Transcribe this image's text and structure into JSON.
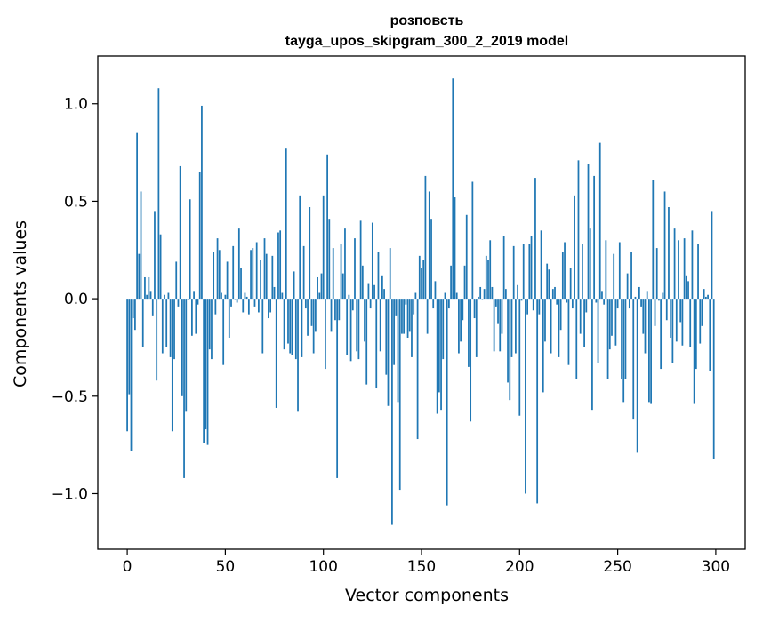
{
  "chart_data": {
    "type": "bar",
    "title": "розповсть",
    "subtitle": "tayga_upos_skipgram_300_2_2019 model",
    "xlabel": "Vector components",
    "ylabel": "Components values",
    "xlim": [
      -15,
      315
    ],
    "ylim": [
      -1.285,
      1.245
    ],
    "x_ticks": [
      0,
      50,
      100,
      150,
      200,
      250,
      300
    ],
    "x_tick_labels": [
      "0",
      "50",
      "100",
      "150",
      "200",
      "250",
      "300"
    ],
    "y_ticks": [
      -1.0,
      -0.5,
      0.0,
      0.5,
      1.0
    ],
    "y_tick_labels": [
      "−1.0",
      "−0.5",
      "0.0",
      "0.5",
      "1.0"
    ],
    "grid": false,
    "legend": "none",
    "bar_color": "#1f77b4",
    "values": [
      -0.68,
      -0.49,
      -0.78,
      -0.1,
      -0.16,
      0.85,
      0.23,
      0.55,
      -0.25,
      0.11,
      0.02,
      0.11,
      0.04,
      -0.09,
      0.45,
      -0.42,
      1.08,
      0.33,
      -0.28,
      0.02,
      -0.25,
      0.03,
      -0.3,
      -0.68,
      -0.31,
      0.19,
      -0.04,
      0.68,
      -0.5,
      -0.92,
      -0.58,
      0.0,
      0.51,
      -0.19,
      0.04,
      -0.18,
      -0.03,
      0.65,
      0.99,
      -0.74,
      -0.67,
      -0.75,
      -0.26,
      -0.31,
      0.24,
      -0.08,
      0.31,
      0.25,
      0.03,
      -0.34,
      0.02,
      0.19,
      -0.2,
      -0.04,
      0.27,
      0.0,
      -0.02,
      0.36,
      0.16,
      -0.07,
      0.03,
      0.01,
      -0.08,
      0.25,
      0.26,
      -0.04,
      0.29,
      -0.07,
      0.2,
      -0.28,
      0.31,
      0.23,
      -0.1,
      -0.07,
      0.22,
      0.06,
      -0.56,
      0.34,
      0.35,
      0.03,
      -0.26,
      0.77,
      -0.23,
      -0.28,
      -0.29,
      0.14,
      -0.31,
      -0.58,
      0.53,
      -0.3,
      0.27,
      -0.05,
      -0.19,
      0.47,
      -0.14,
      -0.28,
      -0.17,
      0.11,
      0.03,
      0.13,
      0.53,
      -0.36,
      0.74,
      0.41,
      -0.17,
      0.26,
      -0.11,
      -0.92,
      -0.11,
      0.28,
      0.13,
      0.36,
      -0.29,
      0.02,
      -0.32,
      -0.06,
      0.31,
      -0.27,
      -0.31,
      0.4,
      0.17,
      -0.22,
      -0.44,
      0.08,
      -0.05,
      0.39,
      0.07,
      -0.46,
      0.24,
      -0.27,
      0.12,
      0.05,
      -0.39,
      -0.55,
      0.26,
      -1.16,
      -0.34,
      -0.09,
      -0.53,
      -0.98,
      -0.18,
      -0.18,
      -0.03,
      -0.2,
      -0.17,
      -0.3,
      -0.08,
      0.03,
      -0.72,
      0.22,
      0.16,
      0.2,
      0.63,
      -0.18,
      0.55,
      0.41,
      -0.05,
      0.09,
      -0.59,
      -0.48,
      -0.57,
      -0.31,
      0.03,
      -1.06,
      -0.05,
      0.17,
      1.13,
      0.52,
      0.03,
      -0.28,
      -0.22,
      -0.11,
      0.17,
      0.43,
      -0.35,
      -0.63,
      0.6,
      -0.1,
      -0.3,
      0.01,
      0.06,
      0.0,
      0.05,
      0.22,
      0.2,
      0.3,
      0.06,
      -0.27,
      -0.04,
      -0.13,
      -0.27,
      -0.18,
      0.32,
      0.05,
      -0.43,
      -0.52,
      -0.3,
      0.27,
      -0.28,
      0.07,
      -0.6,
      -0.01,
      0.28,
      -1.0,
      -0.08,
      0.28,
      0.32,
      -0.06,
      0.62,
      -1.05,
      -0.08,
      0.35,
      -0.48,
      -0.22,
      0.18,
      0.15,
      -0.28,
      0.05,
      0.06,
      -0.03,
      -0.3,
      -0.16,
      0.24,
      0.29,
      -0.02,
      -0.34,
      0.16,
      -0.05,
      0.53,
      -0.41,
      0.71,
      -0.18,
      0.28,
      -0.25,
      -0.07,
      0.69,
      0.36,
      -0.57,
      0.63,
      -0.02,
      -0.33,
      0.8,
      0.04,
      -0.03,
      0.3,
      -0.41,
      -0.26,
      -0.19,
      0.23,
      -0.24,
      -0.05,
      0.29,
      -0.41,
      -0.53,
      -0.41,
      0.13,
      -0.05,
      0.24,
      -0.62,
      0.01,
      -0.79,
      0.06,
      -0.04,
      -0.18,
      -0.28,
      0.04,
      -0.53,
      -0.54,
      0.61,
      -0.14,
      0.26,
      -0.01,
      -0.36,
      0.03,
      0.55,
      -0.11,
      0.47,
      -0.2,
      -0.33,
      0.36,
      -0.22,
      0.3,
      -0.12,
      -0.24,
      0.31,
      0.12,
      0.09,
      -0.25,
      0.35,
      -0.54,
      -0.36,
      0.28,
      -0.23,
      -0.14,
      0.05,
      0.01,
      0.02,
      -0.37,
      0.45,
      -0.82
    ]
  }
}
